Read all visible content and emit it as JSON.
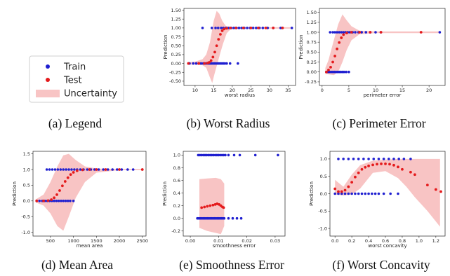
{
  "legend": {
    "items": [
      {
        "label": "Train",
        "color": "#1f1fd0",
        "kind": "point"
      },
      {
        "label": "Test",
        "color": "#e41a1c",
        "kind": "point"
      },
      {
        "label": "Uncertainty",
        "color": "#f8c4c4",
        "kind": "band"
      }
    ],
    "caption": "(a)  Legend"
  },
  "colors": {
    "train": "#1f1fd0",
    "test": "#e41a1c",
    "band": "#f8c4c4"
  },
  "chart_data": [
    {
      "type": "scatter",
      "caption": "(b)  Worst Radius",
      "xlabel": "worst radius",
      "ylabel": "Prediction",
      "xlim": [
        7,
        37
      ],
      "ylim": [
        -0.62,
        1.55
      ],
      "xticks": [
        10,
        15,
        20,
        25,
        30,
        35
      ],
      "yticks": [
        -0.5,
        -0.25,
        0.0,
        0.25,
        0.5,
        0.75,
        1.0,
        1.25,
        1.5
      ],
      "train": {
        "x0": [
          8.5,
          9.5,
          10.3,
          11,
          11.6,
          12.2,
          12.7,
          13.2,
          13.6,
          14,
          14.4,
          14.8,
          15.2,
          15.6,
          16,
          16.4,
          16.8,
          17.2,
          17.6,
          18,
          18.5,
          19.4,
          21.5
        ],
        "x1": [
          12,
          14.5,
          15.5,
          16.2,
          17,
          17.6,
          18.3,
          19,
          19.7,
          20.4,
          21.1,
          21.8,
          22.5,
          23.2,
          24,
          24.8,
          25.6,
          26.4,
          27.3,
          28.2,
          29.5,
          31,
          33,
          36
        ]
      },
      "test_curve": [
        [
          8.2,
          0.0
        ],
        [
          11,
          0.0
        ],
        [
          12.5,
          0.0
        ],
        [
          13.3,
          0.01
        ],
        [
          13.8,
          0.03
        ],
        [
          14.3,
          0.08
        ],
        [
          14.8,
          0.18
        ],
        [
          15.3,
          0.32
        ],
        [
          15.8,
          0.5
        ],
        [
          16.3,
          0.68
        ],
        [
          16.8,
          0.82
        ],
        [
          17.3,
          0.92
        ],
        [
          17.8,
          0.97
        ],
        [
          18.5,
          0.99
        ],
        [
          19.5,
          1.0
        ],
        [
          21,
          1.0
        ],
        [
          23,
          1.0
        ],
        [
          25,
          1.0
        ],
        [
          27,
          1.0
        ],
        [
          29,
          1.0
        ],
        [
          31,
          1.0
        ],
        [
          33.5,
          1.0
        ]
      ],
      "band_upper": [
        [
          8,
          0.03
        ],
        [
          10,
          0.05
        ],
        [
          12,
          0.12
        ],
        [
          13,
          0.25
        ],
        [
          14,
          0.6
        ],
        [
          15,
          1.2
        ],
        [
          15.8,
          1.48
        ],
        [
          16.5,
          1.4
        ],
        [
          17.3,
          1.2
        ],
        [
          18.2,
          1.06
        ],
        [
          19.5,
          1.02
        ],
        [
          23,
          1.02
        ],
        [
          30,
          1.02
        ],
        [
          36,
          1.02
        ]
      ],
      "band_lower": [
        [
          36,
          0.98
        ],
        [
          30,
          0.98
        ],
        [
          23,
          0.98
        ],
        [
          19.5,
          0.96
        ],
        [
          18.5,
          0.85
        ],
        [
          17.5,
          0.55
        ],
        [
          16.8,
          0.3
        ],
        [
          16,
          0.0
        ],
        [
          15.2,
          -0.3
        ],
        [
          14.6,
          -0.55
        ],
        [
          14,
          -0.4
        ],
        [
          13,
          -0.12
        ],
        [
          12,
          -0.05
        ],
        [
          10,
          -0.03
        ],
        [
          8,
          -0.03
        ]
      ]
    },
    {
      "type": "scatter",
      "caption": "(c)  Perimeter Error",
      "xlabel": "perimeter error",
      "ylabel": "Prediction",
      "xlim": [
        -0.5,
        23
      ],
      "ylim": [
        -0.34,
        1.6
      ],
      "xticks": [
        0,
        5,
        10,
        15,
        20
      ],
      "yticks": [
        -0.25,
        0.0,
        0.25,
        0.5,
        0.75,
        1.0,
        1.25,
        1.5
      ],
      "train": {
        "x0": [
          0.8,
          1.1,
          1.4,
          1.7,
          2.0,
          2.3,
          2.6,
          2.9,
          3.2,
          3.5,
          3.8,
          4.1,
          4.5,
          5.0
        ],
        "x1": [
          1.5,
          2.0,
          2.4,
          2.8,
          3.2,
          3.6,
          4.0,
          4.4,
          4.8,
          5.2,
          5.7,
          6.2,
          6.8,
          7.4,
          8.2,
          9.0,
          10.0,
          11.0,
          22.0
        ]
      },
      "test_curve": [
        [
          0.8,
          0.0
        ],
        [
          1.2,
          0.05
        ],
        [
          1.6,
          0.12
        ],
        [
          2.0,
          0.25
        ],
        [
          2.4,
          0.4
        ],
        [
          2.8,
          0.58
        ],
        [
          3.2,
          0.74
        ],
        [
          3.6,
          0.86
        ],
        [
          4.0,
          0.94
        ],
        [
          4.6,
          0.98
        ],
        [
          5.5,
          1.0
        ],
        [
          7,
          1.0
        ],
        [
          9,
          1.0
        ],
        [
          11,
          1.0
        ],
        [
          18.5,
          1.0
        ]
      ],
      "band_upper": [
        [
          0.6,
          0.1
        ],
        [
          1.2,
          0.3
        ],
        [
          2.0,
          0.7
        ],
        [
          3.0,
          1.2
        ],
        [
          3.8,
          1.45
        ],
        [
          4.6,
          1.3
        ],
        [
          5.5,
          1.15
        ],
        [
          7,
          1.04
        ],
        [
          10,
          1.02
        ],
        [
          22,
          1.02
        ]
      ],
      "band_lower": [
        [
          22,
          0.98
        ],
        [
          10,
          0.98
        ],
        [
          7,
          0.95
        ],
        [
          5.5,
          0.8
        ],
        [
          4.6,
          0.55
        ],
        [
          3.8,
          0.25
        ],
        [
          3.0,
          0.0
        ],
        [
          2.2,
          -0.08
        ],
        [
          1.2,
          -0.06
        ],
        [
          0.6,
          -0.05
        ]
      ]
    },
    {
      "type": "scatter",
      "caption": "(d)  Mean Area",
      "xlabel": "mean area",
      "ylabel": "Prediction",
      "xlim": [
        120,
        2580
      ],
      "ylim": [
        -1.12,
        1.58
      ],
      "xticks": [
        500,
        1000,
        1500,
        2000,
        2500
      ],
      "yticks": [
        -1.0,
        -0.5,
        0.0,
        0.5,
        1.0,
        1.5
      ],
      "train": {
        "x0": [
          200,
          260,
          320,
          380,
          430,
          480,
          530,
          580,
          630,
          680,
          730,
          780,
          830,
          880,
          930,
          1000
        ],
        "x1": [
          420,
          480,
          540,
          600,
          660,
          720,
          780,
          840,
          900,
          960,
          1020,
          1080,
          1150,
          1220,
          1300,
          1380,
          1460,
          1550,
          1650,
          1750,
          1850,
          1950,
          2050,
          2180,
          2300
        ]
      },
      "test_curve": [
        [
          200,
          0.0
        ],
        [
          350,
          0.0
        ],
        [
          450,
          0.01
        ],
        [
          520,
          0.04
        ],
        [
          580,
          0.1
        ],
        [
          640,
          0.2
        ],
        [
          700,
          0.33
        ],
        [
          760,
          0.48
        ],
        [
          820,
          0.62
        ],
        [
          880,
          0.74
        ],
        [
          940,
          0.84
        ],
        [
          1000,
          0.91
        ],
        [
          1080,
          0.96
        ],
        [
          1200,
          0.99
        ],
        [
          1350,
          1.0
        ],
        [
          1500,
          1.0
        ],
        [
          1700,
          1.0
        ],
        [
          2000,
          1.0
        ],
        [
          2500,
          1.0
        ]
      ],
      "band_upper": [
        [
          180,
          0.05
        ],
        [
          350,
          0.2
        ],
        [
          500,
          0.6
        ],
        [
          650,
          1.1
        ],
        [
          780,
          1.45
        ],
        [
          900,
          1.5
        ],
        [
          1050,
          1.3
        ],
        [
          1250,
          1.1
        ],
        [
          1500,
          1.03
        ],
        [
          2000,
          1.02
        ],
        [
          2500,
          1.02
        ]
      ],
      "band_lower": [
        [
          2500,
          0.98
        ],
        [
          2000,
          0.98
        ],
        [
          1500,
          0.9
        ],
        [
          1250,
          0.6
        ],
        [
          1050,
          0.1
        ],
        [
          900,
          -0.5
        ],
        [
          780,
          -0.95
        ],
        [
          650,
          -0.8
        ],
        [
          500,
          -0.4
        ],
        [
          350,
          -0.15
        ],
        [
          180,
          -0.05
        ]
      ]
    },
    {
      "type": "scatter",
      "caption": "(e)  Smoothness Error",
      "xlabel": "smoothness error",
      "ylabel": "Prediction",
      "xlim": [
        -0.0025,
        0.0335
      ],
      "ylim": [
        -0.28,
        1.06
      ],
      "xticks": [
        0.0,
        0.01,
        0.02,
        0.03
      ],
      "xtick_labels": [
        "0.00",
        "0.01",
        "0.02",
        "0.03"
      ],
      "yticks": [
        -0.2,
        0.0,
        0.2,
        0.4,
        0.6,
        0.8,
        1.0
      ],
      "train": {
        "x0": [
          0.0025,
          0.003,
          0.0035,
          0.004,
          0.0045,
          0.005,
          0.0055,
          0.006,
          0.0065,
          0.007,
          0.0075,
          0.008,
          0.0085,
          0.009,
          0.0095,
          0.01,
          0.0105,
          0.011,
          0.0115,
          0.012,
          0.0135,
          0.015,
          0.0165,
          0.018
        ],
        "x1": [
          0.0028,
          0.0034,
          0.004,
          0.0046,
          0.0052,
          0.0058,
          0.0064,
          0.007,
          0.0076,
          0.0082,
          0.0088,
          0.0094,
          0.01,
          0.0106,
          0.0112,
          0.0118,
          0.0124,
          0.0135,
          0.0155,
          0.0175,
          0.023,
          0.031
        ]
      },
      "test_curve": [
        [
          0.004,
          0.17
        ],
        [
          0.005,
          0.18
        ],
        [
          0.006,
          0.19
        ],
        [
          0.007,
          0.2
        ],
        [
          0.008,
          0.21
        ],
        [
          0.0088,
          0.22
        ],
        [
          0.0095,
          0.23
        ],
        [
          0.0102,
          0.22
        ],
        [
          0.0108,
          0.2
        ],
        [
          0.0114,
          0.18
        ],
        [
          0.0118,
          0.17
        ]
      ],
      "band_upper": [
        [
          0.0032,
          0.62
        ],
        [
          0.006,
          0.63
        ],
        [
          0.009,
          0.64
        ],
        [
          0.0108,
          0.62
        ],
        [
          0.012,
          0.55
        ]
      ],
      "band_lower": [
        [
          0.012,
          -0.12
        ],
        [
          0.0108,
          -0.25
        ],
        [
          0.009,
          -0.23
        ],
        [
          0.006,
          -0.2
        ],
        [
          0.0032,
          -0.15
        ]
      ]
    },
    {
      "type": "scatter",
      "caption": "(f)  Worst Concavity",
      "xlabel": "worst concavity",
      "ylabel": "Prediction",
      "xlim": [
        -0.06,
        1.31
      ],
      "ylim": [
        -1.22,
        1.22
      ],
      "xticks": [
        0.0,
        0.2,
        0.4,
        0.6,
        0.8,
        1.0,
        1.2
      ],
      "yticks": [
        -1.0,
        -0.5,
        0.0,
        0.5,
        1.0
      ],
      "train": {
        "x0": [
          0.0,
          0.04,
          0.08,
          0.12,
          0.16,
          0.2,
          0.24,
          0.28,
          0.32,
          0.36,
          0.4,
          0.44,
          0.48,
          0.52,
          0.58,
          0.66,
          0.75
        ],
        "x1": [
          0.04,
          0.1,
          0.16,
          0.22,
          0.28,
          0.34,
          0.4,
          0.46,
          0.52,
          0.58,
          0.64,
          0.7,
          0.76,
          0.82,
          0.9
        ]
      },
      "test_curve": [
        [
          0.0,
          0.14
        ],
        [
          0.04,
          0.06
        ],
        [
          0.08,
          0.06
        ],
        [
          0.12,
          0.1
        ],
        [
          0.16,
          0.2
        ],
        [
          0.2,
          0.33
        ],
        [
          0.24,
          0.48
        ],
        [
          0.28,
          0.6
        ],
        [
          0.32,
          0.7
        ],
        [
          0.36,
          0.76
        ],
        [
          0.4,
          0.8
        ],
        [
          0.45,
          0.83
        ],
        [
          0.5,
          0.85
        ],
        [
          0.55,
          0.86
        ],
        [
          0.6,
          0.86
        ],
        [
          0.65,
          0.85
        ],
        [
          0.7,
          0.82
        ],
        [
          0.75,
          0.77
        ],
        [
          0.8,
          0.7
        ],
        [
          0.9,
          0.62
        ],
        [
          0.95,
          0.55
        ],
        [
          1.1,
          0.25
        ],
        [
          1.2,
          0.12
        ],
        [
          1.26,
          0.06
        ]
      ],
      "band_upper": [
        [
          0.0,
          0.4
        ],
        [
          0.1,
          0.2
        ],
        [
          0.2,
          0.55
        ],
        [
          0.3,
          0.82
        ],
        [
          0.45,
          0.95
        ],
        [
          0.6,
          0.98
        ],
        [
          0.75,
          1.0
        ],
        [
          0.85,
          1.0
        ],
        [
          0.95,
          1.0
        ],
        [
          1.1,
          1.0
        ],
        [
          1.25,
          1.0
        ]
      ],
      "band_lower": [
        [
          1.25,
          -0.95
        ],
        [
          1.1,
          -0.5
        ],
        [
          0.95,
          -0.1
        ],
        [
          0.85,
          0.2
        ],
        [
          0.75,
          0.45
        ],
        [
          0.6,
          0.65
        ],
        [
          0.45,
          0.6
        ],
        [
          0.3,
          0.15
        ],
        [
          0.2,
          -0.02
        ],
        [
          0.1,
          -0.05
        ],
        [
          0.0,
          -0.02
        ]
      ]
    }
  ]
}
